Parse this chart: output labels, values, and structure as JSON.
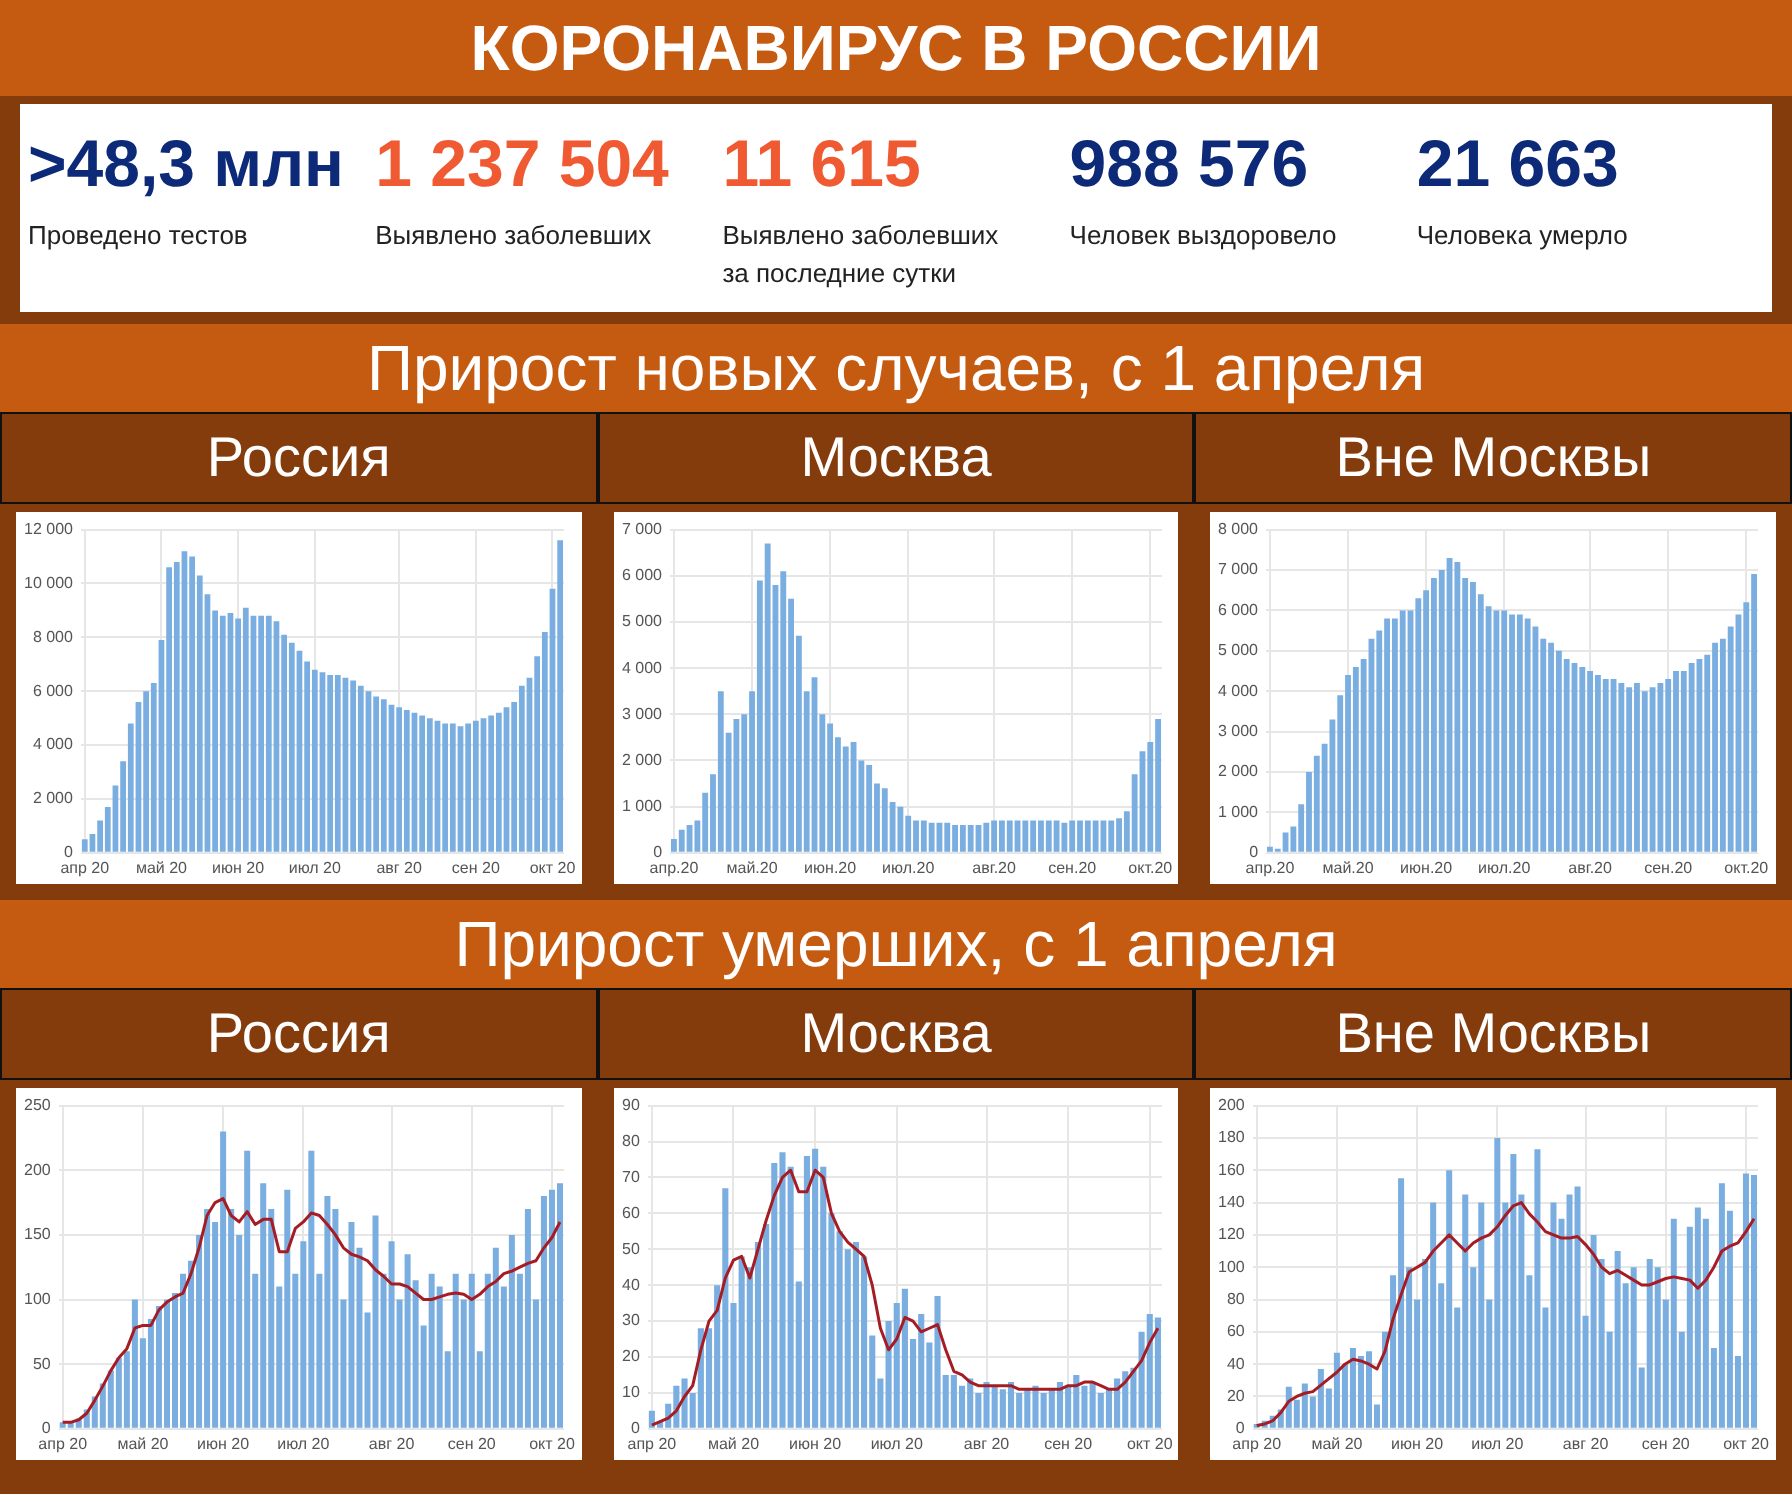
{
  "chart_data": [
    {
      "type": "other",
      "title": "КОРОНАВИРУС В РОССИИ",
      "annotations": [
        ">48,3 млн",
        "Проведено тестов",
        "1 237 504",
        "Выявлено заболевших",
        "11 615",
        "Выявлено заболевших за последние сутки",
        "988 576",
        "Человек выздоровело",
        "21 663",
        "Человека умерло"
      ]
    },
    {
      "type": "other",
      "title": "Прирост новых случаев, с 1 апреля"
    },
    {
      "type": "bar",
      "title": "Россия",
      "grid": true,
      "legend": false,
      "categories": [
        "апр 20",
        null,
        null,
        null,
        null,
        null,
        null,
        null,
        null,
        null,
        "май 20",
        null,
        null,
        null,
        null,
        null,
        null,
        null,
        null,
        null,
        "июн 20",
        null,
        null,
        null,
        null,
        null,
        null,
        null,
        null,
        null,
        "июл 20",
        null,
        null,
        null,
        null,
        null,
        null,
        null,
        null,
        null,
        null,
        "авг 20",
        null,
        null,
        null,
        null,
        null,
        null,
        null,
        null,
        null,
        "сен 20",
        null,
        null,
        null,
        null,
        null,
        null,
        null,
        null,
        null,
        "окт 20",
        null
      ],
      "ylim": [
        0,
        12000
      ],
      "yticks": [
        0,
        {
          "value": 2000,
          "label": "2 000"
        },
        {
          "value": 4000,
          "label": "4 000"
        },
        {
          "value": 6000,
          "label": "6 000"
        },
        {
          "value": 8000,
          "label": "8 000"
        },
        {
          "value": 10000,
          "label": "10 000"
        },
        {
          "value": 12000,
          "label": "12 000"
        }
      ],
      "series": [
        {
          "type": "bar",
          "color": "#7aaee0",
          "values": [
            500,
            700,
            1200,
            1700,
            2500,
            3400,
            4800,
            5600,
            6000,
            6300,
            7900,
            10600,
            10800,
            11200,
            11000,
            10300,
            9600,
            9000,
            8800,
            8900,
            8700,
            9100,
            8800,
            8800,
            8800,
            8600,
            8100,
            7800,
            7500,
            7100,
            6800,
            6700,
            6600,
            6600,
            6500,
            6400,
            6200,
            6000,
            5800,
            5700,
            5500,
            5400,
            5300,
            5200,
            5100,
            5000,
            4900,
            4800,
            4800,
            4700,
            4800,
            4900,
            5000,
            5100,
            5200,
            5400,
            5600,
            6200,
            6500,
            7300,
            8200,
            9800,
            11600
          ]
        }
      ]
    },
    {
      "type": "bar",
      "title": "Москва",
      "grid": true,
      "legend": false,
      "categories": [
        "апр.20",
        null,
        null,
        null,
        null,
        null,
        null,
        null,
        null,
        null,
        "май.20",
        null,
        null,
        null,
        null,
        null,
        null,
        null,
        null,
        null,
        "июн.20",
        null,
        null,
        null,
        null,
        null,
        null,
        null,
        null,
        null,
        "июл.20",
        null,
        null,
        null,
        null,
        null,
        null,
        null,
        null,
        null,
        null,
        "авг.20",
        null,
        null,
        null,
        null,
        null,
        null,
        null,
        null,
        null,
        "сен.20",
        null,
        null,
        null,
        null,
        null,
        null,
        null,
        null,
        null,
        "окт.20",
        null
      ],
      "ylim": [
        0,
        7000
      ],
      "yticks": [
        0,
        {
          "value": 1000,
          "label": "1 000"
        },
        {
          "value": 2000,
          "label": "2 000"
        },
        {
          "value": 3000,
          "label": "3 000"
        },
        {
          "value": 4000,
          "label": "4 000"
        },
        {
          "value": 5000,
          "label": "5 000"
        },
        {
          "value": 6000,
          "label": "6 000"
        },
        {
          "value": 7000,
          "label": "7 000"
        }
      ],
      "series": [
        {
          "type": "bar",
          "color": "#7aaee0",
          "values": [
            300,
            500,
            600,
            700,
            1300,
            1700,
            3500,
            2600,
            2900,
            3000,
            3500,
            5900,
            6700,
            5800,
            6100,
            5500,
            4700,
            3500,
            3800,
            3000,
            2800,
            2500,
            2300,
            2400,
            2000,
            1900,
            1500,
            1400,
            1100,
            1000,
            800,
            700,
            700,
            650,
            650,
            650,
            600,
            600,
            600,
            600,
            650,
            700,
            700,
            700,
            700,
            700,
            700,
            700,
            700,
            700,
            650,
            700,
            700,
            700,
            700,
            700,
            700,
            750,
            900,
            1700,
            2200,
            2400,
            2900
          ]
        }
      ]
    },
    {
      "type": "bar",
      "title": "Вне Москвы",
      "grid": true,
      "legend": false,
      "categories": [
        "апр.20",
        null,
        null,
        null,
        null,
        null,
        null,
        null,
        null,
        null,
        "май.20",
        null,
        null,
        null,
        null,
        null,
        null,
        null,
        null,
        null,
        "июн.20",
        null,
        null,
        null,
        null,
        null,
        null,
        null,
        null,
        null,
        "июл.20",
        null,
        null,
        null,
        null,
        null,
        null,
        null,
        null,
        null,
        null,
        "авг.20",
        null,
        null,
        null,
        null,
        null,
        null,
        null,
        null,
        null,
        "сен.20",
        null,
        null,
        null,
        null,
        null,
        null,
        null,
        null,
        null,
        "окт.20",
        null
      ],
      "ylim": [
        0,
        8000
      ],
      "yticks": [
        0,
        {
          "value": 1000,
          "label": "1 000"
        },
        {
          "value": 2000,
          "label": "2 000"
        },
        {
          "value": 3000,
          "label": "3 000"
        },
        {
          "value": 4000,
          "label": "4 000"
        },
        {
          "value": 5000,
          "label": "5 000"
        },
        {
          "value": 6000,
          "label": "6 000"
        },
        {
          "value": 7000,
          "label": "7 000"
        },
        {
          "value": 8000,
          "label": "8 000"
        }
      ],
      "series": [
        {
          "type": "bar",
          "color": "#7aaee0",
          "values": [
            150,
            100,
            500,
            650,
            1200,
            2000,
            2400,
            2700,
            3300,
            3900,
            4400,
            4600,
            4800,
            5300,
            5500,
            5800,
            5800,
            6000,
            6000,
            6300,
            6500,
            6800,
            7000,
            7300,
            7200,
            6800,
            6700,
            6400,
            6100,
            6000,
            6000,
            5900,
            5900,
            5800,
            5600,
            5300,
            5200,
            5000,
            4800,
            4700,
            4600,
            4500,
            4400,
            4300,
            4300,
            4200,
            4100,
            4200,
            4000,
            4100,
            4200,
            4300,
            4500,
            4500,
            4700,
            4800,
            4900,
            5200,
            5300,
            5600,
            5900,
            6200,
            6900
          ]
        }
      ]
    },
    {
      "type": "other",
      "title": "Прирост умерших, с 1 апреля"
    },
    {
      "type": "bar",
      "title": "Россия",
      "grid": true,
      "legend": false,
      "marker": "none",
      "categories": [
        "апр 20",
        null,
        null,
        null,
        null,
        null,
        null,
        null,
        null,
        null,
        "май 20",
        null,
        null,
        null,
        null,
        null,
        null,
        null,
        null,
        null,
        "июн 20",
        null,
        null,
        null,
        null,
        null,
        null,
        null,
        null,
        null,
        "июл 20",
        null,
        null,
        null,
        null,
        null,
        null,
        null,
        null,
        null,
        null,
        "авг 20",
        null,
        null,
        null,
        null,
        null,
        null,
        null,
        null,
        null,
        "сен 20",
        null,
        null,
        null,
        null,
        null,
        null,
        null,
        null,
        null,
        "окт 20",
        null
      ],
      "ylim": [
        0,
        250
      ],
      "yticks": [
        0,
        50,
        100,
        150,
        200,
        250
      ],
      "series": [
        {
          "type": "bar",
          "color": "#7aaee0",
          "values": [
            5,
            5,
            8,
            15,
            25,
            35,
            45,
            55,
            60,
            100,
            70,
            85,
            95,
            100,
            105,
            120,
            130,
            150,
            170,
            160,
            230,
            170,
            150,
            215,
            120,
            190,
            170,
            110,
            185,
            120,
            145,
            215,
            120,
            180,
            170,
            100,
            160,
            140,
            90,
            165,
            120,
            145,
            100,
            135,
            115,
            80,
            120,
            110,
            60,
            120,
            100,
            120,
            60,
            120,
            140,
            110,
            150,
            120,
            170,
            100,
            180,
            185,
            190
          ]
        },
        {
          "type": "line",
          "color": "#a61c24",
          "values": [
            5,
            5,
            7,
            12,
            22,
            33,
            45,
            55,
            62,
            78,
            80,
            80,
            92,
            98,
            102,
            105,
            120,
            140,
            165,
            175,
            178,
            165,
            160,
            168,
            158,
            162,
            162,
            137,
            137,
            155,
            160,
            167,
            165,
            158,
            150,
            140,
            135,
            133,
            130,
            123,
            118,
            112,
            112,
            110,
            105,
            100,
            100,
            102,
            104,
            105,
            104,
            100,
            104,
            110,
            114,
            120,
            122,
            125,
            128,
            130,
            140,
            148,
            160
          ]
        }
      ]
    },
    {
      "type": "bar",
      "title": "Москва",
      "grid": true,
      "legend": false,
      "marker": "none",
      "categories": [
        "апр 20",
        null,
        null,
        null,
        null,
        null,
        null,
        null,
        null,
        null,
        "май 20",
        null,
        null,
        null,
        null,
        null,
        null,
        null,
        null,
        null,
        "июн 20",
        null,
        null,
        null,
        null,
        null,
        null,
        null,
        null,
        null,
        "июл 20",
        null,
        null,
        null,
        null,
        null,
        null,
        null,
        null,
        null,
        null,
        "авг 20",
        null,
        null,
        null,
        null,
        null,
        null,
        null,
        null,
        null,
        "сен 20",
        null,
        null,
        null,
        null,
        null,
        null,
        null,
        null,
        null,
        "окт 20",
        null
      ],
      "ylim": [
        0,
        90
      ],
      "yticks": [
        0,
        10,
        20,
        30,
        40,
        50,
        60,
        70,
        80,
        90
      ],
      "series": [
        {
          "type": "bar",
          "color": "#7aaee0",
          "values": [
            5,
            2,
            7,
            12,
            14,
            10,
            28,
            28,
            40,
            67,
            35,
            48,
            45,
            52,
            57,
            74,
            77,
            73,
            41,
            76,
            78,
            73,
            60,
            55,
            50,
            52,
            48,
            26,
            14,
            30,
            35,
            39,
            25,
            32,
            24,
            37,
            15,
            15,
            12,
            14,
            10,
            13,
            12,
            11,
            13,
            10,
            11,
            12,
            10,
            11,
            13,
            12,
            15,
            12,
            13,
            10,
            11,
            14,
            16,
            17,
            27,
            32,
            31
          ]
        },
        {
          "type": "line",
          "color": "#a61c24",
          "values": [
            1,
            2,
            3,
            5,
            9,
            12,
            22,
            30,
            33,
            42,
            47,
            48,
            42,
            50,
            58,
            65,
            70,
            72,
            66,
            66,
            72,
            70,
            60,
            55,
            52,
            50,
            48,
            40,
            28,
            22,
            25,
            31,
            30,
            27,
            28,
            29,
            22,
            16,
            15,
            13,
            12,
            12,
            12,
            12,
            12,
            11,
            11,
            11,
            11,
            11,
            11,
            12,
            12,
            13,
            13,
            12,
            11,
            11,
            13,
            16,
            19,
            24,
            28
          ]
        }
      ]
    },
    {
      "type": "bar",
      "title": "Вне Москвы",
      "grid": true,
      "legend": false,
      "marker": "none",
      "categories": [
        "апр 20",
        null,
        null,
        null,
        null,
        null,
        null,
        null,
        null,
        null,
        "май 20",
        null,
        null,
        null,
        null,
        null,
        null,
        null,
        null,
        null,
        "июн 20",
        null,
        null,
        null,
        null,
        null,
        null,
        null,
        null,
        null,
        "июл 20",
        null,
        null,
        null,
        null,
        null,
        null,
        null,
        null,
        null,
        null,
        "авг 20",
        null,
        null,
        null,
        null,
        null,
        null,
        null,
        null,
        null,
        "сен 20",
        null,
        null,
        null,
        null,
        null,
        null,
        null,
        null,
        null,
        "окт 20",
        null
      ],
      "ylim": [
        0,
        200
      ],
      "yticks": [
        0,
        20,
        40,
        60,
        80,
        100,
        120,
        140,
        160,
        180,
        200
      ],
      "series": [
        {
          "type": "bar",
          "color": "#7aaee0",
          "values": [
            3,
            5,
            8,
            12,
            26,
            18,
            28,
            20,
            37,
            25,
            47,
            40,
            50,
            45,
            48,
            15,
            60,
            95,
            155,
            100,
            80,
            105,
            140,
            90,
            160,
            75,
            145,
            100,
            140,
            80,
            180,
            140,
            170,
            145,
            95,
            173,
            75,
            140,
            130,
            145,
            150,
            70,
            120,
            105,
            60,
            110,
            90,
            100,
            38,
            105,
            100,
            80,
            130,
            60,
            125,
            137,
            130,
            50,
            152,
            135,
            45,
            158,
            157
          ]
        },
        {
          "type": "line",
          "color": "#a61c24",
          "values": [
            2,
            3,
            5,
            10,
            17,
            20,
            22,
            23,
            27,
            31,
            35,
            40,
            43,
            42,
            40,
            37,
            48,
            68,
            83,
            97,
            100,
            103,
            110,
            115,
            120,
            115,
            110,
            115,
            118,
            120,
            125,
            132,
            138,
            140,
            133,
            128,
            122,
            120,
            118,
            118,
            119,
            114,
            108,
            100,
            96,
            98,
            95,
            92,
            89,
            89,
            91,
            93,
            94,
            93,
            92,
            87,
            92,
            100,
            110,
            113,
            115,
            122,
            130
          ]
        }
      ]
    }
  ]
}
